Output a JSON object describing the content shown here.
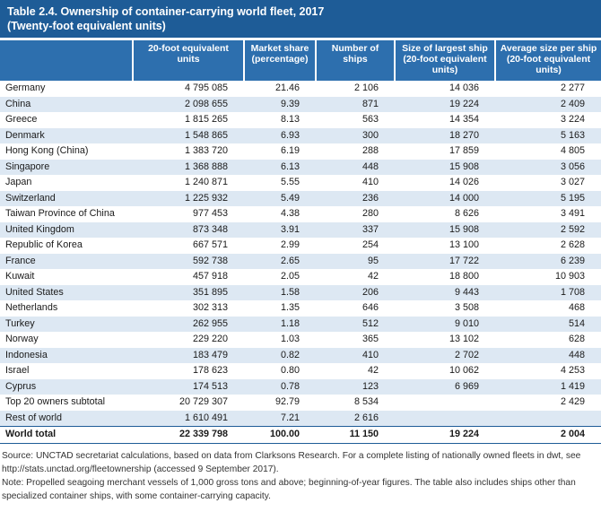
{
  "header": {
    "title": "Table 2.4.  Ownership of container-carrying world fleet, 2017",
    "subtitle": "(Twenty-foot equivalent units)"
  },
  "table": {
    "columns": [
      "",
      "20-foot equivalent units",
      "Market share (percentage)",
      "Number of ships",
      "Size of largest ship (20-foot equivalent units)",
      "Average size per ship (20-foot equivalent units)"
    ],
    "rows": [
      [
        "Germany",
        "4 795 085",
        "21.46",
        "2 106",
        "14 036",
        "2 277"
      ],
      [
        "China",
        "2 098 655",
        "9.39",
        "871",
        "19 224",
        "2 409"
      ],
      [
        "Greece",
        "1 815 265",
        "8.13",
        "563",
        "14 354",
        "3 224"
      ],
      [
        "Denmark",
        "1 548 865",
        "6.93",
        "300",
        "18 270",
        "5 163"
      ],
      [
        "Hong Kong (China)",
        "1 383 720",
        "6.19",
        "288",
        "17 859",
        "4 805"
      ],
      [
        "Singapore",
        "1 368 888",
        "6.13",
        "448",
        "15 908",
        "3 056"
      ],
      [
        "Japan",
        "1 240 871",
        "5.55",
        "410",
        "14 026",
        "3 027"
      ],
      [
        "Switzerland",
        "1 225 932",
        "5.49",
        "236",
        "14 000",
        "5 195"
      ],
      [
        "Taiwan Province of China",
        "977 453",
        "4.38",
        "280",
        "8 626",
        "3 491"
      ],
      [
        "United Kingdom",
        "873 348",
        "3.91",
        "337",
        "15 908",
        "2 592"
      ],
      [
        "Republic of Korea",
        "667 571",
        "2.99",
        "254",
        "13 100",
        "2 628"
      ],
      [
        "France",
        "592 738",
        "2.65",
        "95",
        "17 722",
        "6 239"
      ],
      [
        "Kuwait",
        "457 918",
        "2.05",
        "42",
        "18 800",
        "10 903"
      ],
      [
        "United States",
        "351 895",
        "1.58",
        "206",
        "9 443",
        "1 708"
      ],
      [
        "Netherlands",
        "302 313",
        "1.35",
        "646",
        "3 508",
        "468"
      ],
      [
        "Turkey",
        "262 955",
        "1.18",
        "512",
        "9 010",
        "514"
      ],
      [
        "Norway",
        "229 220",
        "1.03",
        "365",
        "13 102",
        "628"
      ],
      [
        "Indonesia",
        "183 479",
        "0.82",
        "410",
        "2 702",
        "448"
      ],
      [
        "Israel",
        "178 623",
        "0.80",
        "42",
        "10 062",
        "4 253"
      ],
      [
        "Cyprus",
        "174 513",
        "0.78",
        "123",
        "6 969",
        "1 419"
      ],
      [
        "Top 20 owners subtotal",
        "20 729 307",
        "92.79",
        "8 534",
        "",
        "2 429"
      ],
      [
        "Rest of world",
        "1 610 491",
        "7.21",
        "2 616",
        "",
        ""
      ],
      [
        "World total",
        "22 339 798",
        "100.00",
        "11 150",
        "19 224",
        "2 004"
      ]
    ]
  },
  "footer": {
    "source": "Source: UNCTAD secretariat calculations, based on data from Clarksons Research. For a complete listing of nationally owned fleets in dwt, see http://stats.unctad.org/fleetownership (accessed 9 September 2017).",
    "note": "Note: Propelled seagoing merchant vessels of 1,000 gross tons and above; beginning-of-year figures. The table also includes ships other than specialized container ships, with some container-carrying capacity."
  }
}
